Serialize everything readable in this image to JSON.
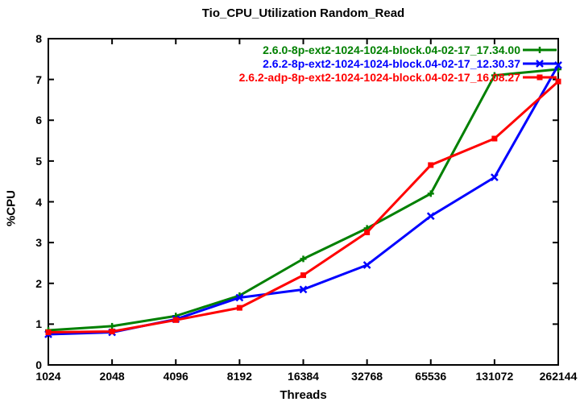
{
  "title": "Tio_CPU_Utilization Random_Read",
  "axes": {
    "xlabel": "Threads",
    "ylabel": "%CPU"
  },
  "chart_data": {
    "type": "line",
    "title": "Tio_CPU_Utilization Random_Read",
    "xlabel": "Threads",
    "ylabel": "%CPU",
    "xscale": "log2",
    "x": [
      1024,
      2048,
      4096,
      8192,
      16384,
      32768,
      65536,
      131072,
      262144
    ],
    "xticklabels": [
      "1024",
      "2048",
      "4096",
      "8192",
      "16384",
      "32768",
      "65536",
      "131072",
      "262144"
    ],
    "ylim": [
      0,
      8
    ],
    "yticks": [
      0,
      1,
      2,
      3,
      4,
      5,
      6,
      7,
      8
    ],
    "grid": false,
    "legend_position": "top-right-inside",
    "axis_color": "#000000",
    "background_color": "#ffffff",
    "series": [
      {
        "name": "2.6.0-8p-ext2-1024-1024-block.04-02-17_17.34.00",
        "color": "#008000",
        "marker": "plus",
        "values": [
          0.85,
          0.95,
          1.2,
          1.7,
          2.6,
          3.35,
          4.2,
          7.1,
          7.25
        ]
      },
      {
        "name": "2.6.2-8p-ext2-1024-1024-block.04-02-17_12.30.37",
        "color": "#0000ff",
        "marker": "x",
        "values": [
          0.75,
          0.8,
          1.12,
          1.65,
          1.85,
          2.45,
          3.65,
          4.6,
          7.35
        ]
      },
      {
        "name": "2.6.2-adp-8p-ext2-1024-1024-block.04-02-17_16.08.27",
        "color": "#ff0000",
        "marker": "filled-square",
        "values": [
          0.8,
          0.82,
          1.1,
          1.4,
          2.2,
          3.25,
          4.9,
          5.55,
          6.95
        ]
      }
    ]
  }
}
